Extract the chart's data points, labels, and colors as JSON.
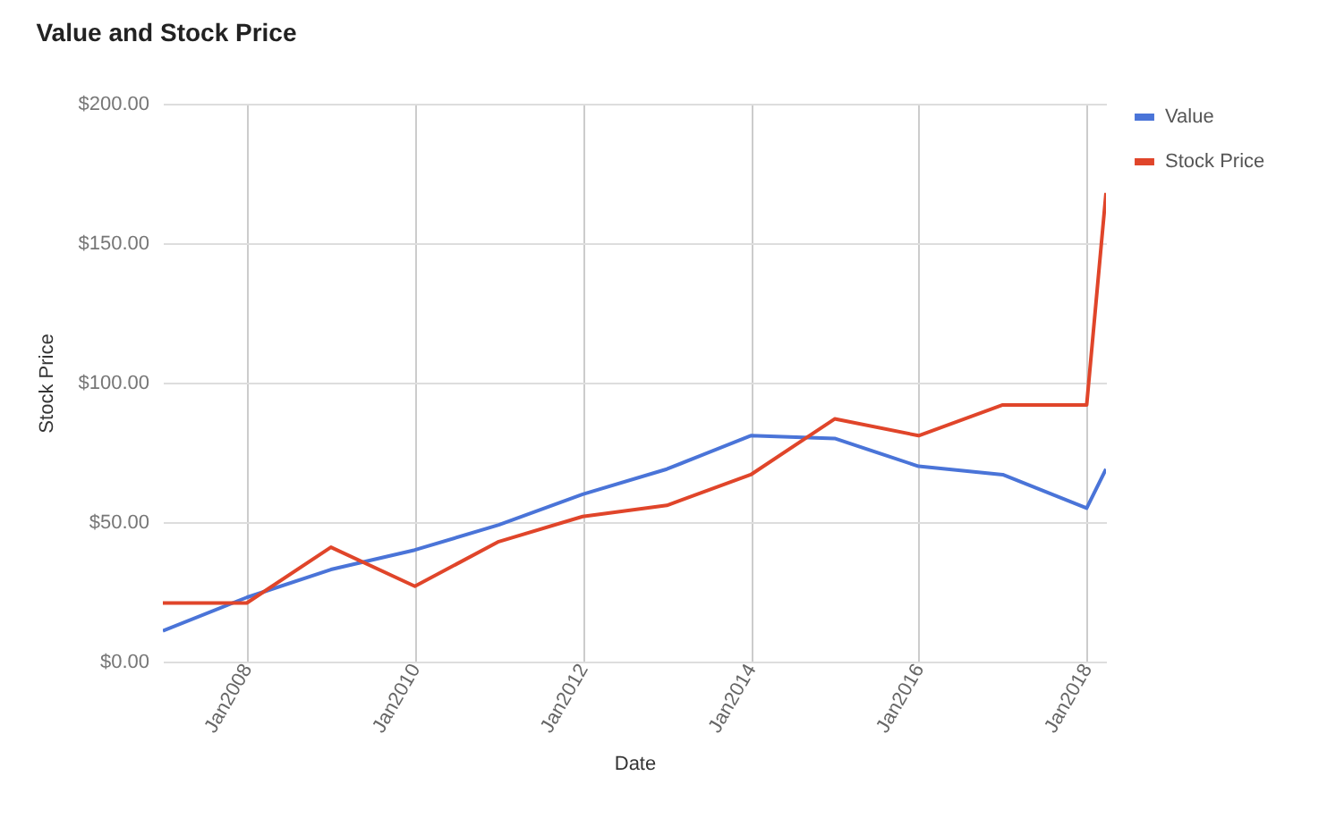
{
  "chart_data": {
    "type": "line",
    "title": "Value and Stock Price",
    "xlabel": "Date",
    "ylabel": "Stock Price",
    "x": [
      "2006-12-31",
      "2007-12-31",
      "2008-12-31",
      "2009-12-31",
      "2010-12-31",
      "2011-12-31",
      "2012-12-31",
      "2013-12-31",
      "2014-12-31",
      "2015-12-31",
      "2016-12-31",
      "2017-12-31",
      "2018-03-25"
    ],
    "series": [
      {
        "name": "Value",
        "color": "#4a74d8",
        "values": [
          11,
          23,
          33,
          40,
          49,
          60,
          69,
          81,
          80,
          70,
          67,
          55,
          69
        ]
      },
      {
        "name": "Stock Price",
        "color": "#e0452a",
        "values": [
          21,
          21,
          41,
          27,
          43,
          52,
          56,
          67,
          87,
          81,
          92,
          92,
          168
        ]
      }
    ],
    "xlim": [
      "2006-12-31",
      "2018-03-25"
    ],
    "xticks": [
      {
        "value": "2008-01-01",
        "label": "Jan2008"
      },
      {
        "value": "2010-01-01",
        "label": "Jan2010"
      },
      {
        "value": "2012-01-01",
        "label": "Jan2012"
      },
      {
        "value": "2014-01-01",
        "label": "Jan2014"
      },
      {
        "value": "2016-01-01",
        "label": "Jan2016"
      },
      {
        "value": "2018-01-01",
        "label": "Jan2018"
      }
    ],
    "ylim": [
      0,
      200
    ],
    "yticks": [
      {
        "value": 0,
        "label": "$0.00"
      },
      {
        "value": 50,
        "label": "$50.00"
      },
      {
        "value": 100,
        "label": "$100.00"
      },
      {
        "value": 150,
        "label": "$150.00"
      },
      {
        "value": 200,
        "label": "$200.00"
      }
    ],
    "grid": true,
    "legend": "right"
  }
}
